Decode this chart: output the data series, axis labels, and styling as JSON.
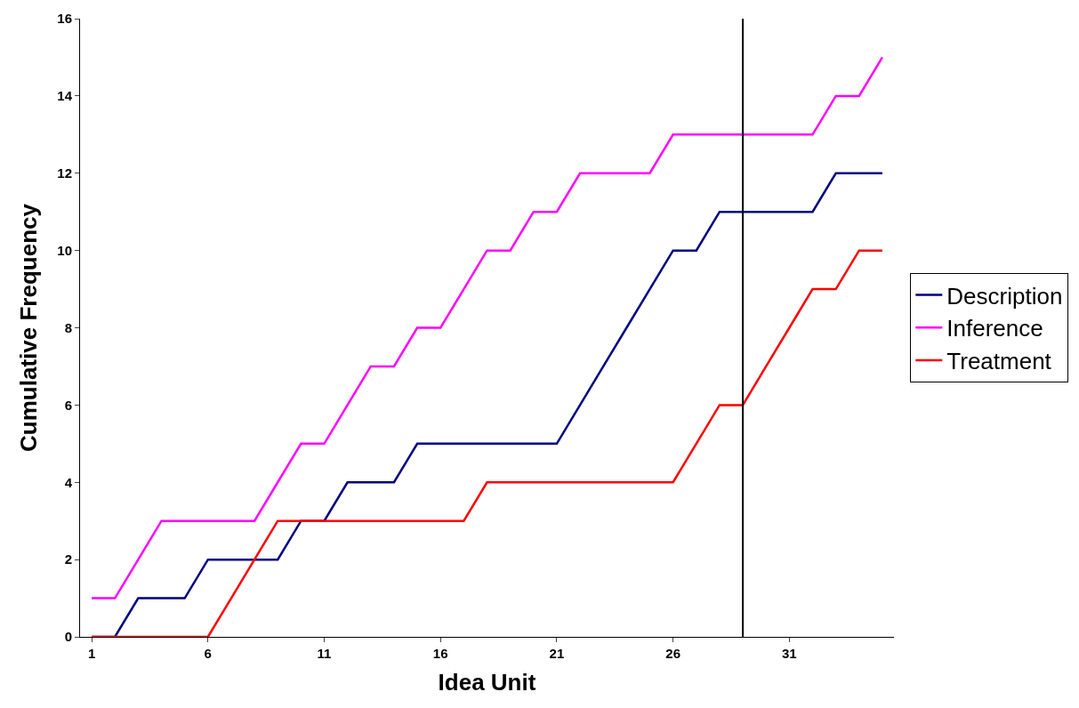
{
  "chart_data": {
    "type": "line",
    "xlabel": "Idea Unit",
    "ylabel": "Cumulative Frequency",
    "x": [
      1,
      2,
      3,
      4,
      5,
      6,
      7,
      8,
      9,
      10,
      11,
      12,
      13,
      14,
      15,
      16,
      17,
      18,
      19,
      20,
      21,
      22,
      23,
      24,
      25,
      26,
      27,
      28,
      29,
      30,
      31,
      32,
      33,
      34,
      35
    ],
    "series": [
      {
        "name": "Description",
        "color": "#000080",
        "values": [
          0,
          0,
          1,
          1,
          1,
          2,
          2,
          2,
          2,
          3,
          3,
          4,
          4,
          4,
          5,
          5,
          5,
          5,
          5,
          5,
          5,
          6,
          7,
          8,
          9,
          10,
          10,
          11,
          11,
          11,
          11,
          11,
          12,
          12,
          12
        ]
      },
      {
        "name": "Inference",
        "color": "#ff00ff",
        "values": [
          1,
          1,
          2,
          3,
          3,
          3,
          3,
          3,
          4,
          5,
          5,
          6,
          7,
          7,
          8,
          8,
          9,
          10,
          10,
          11,
          11,
          12,
          12,
          12,
          12,
          13,
          13,
          13,
          13,
          13,
          13,
          13,
          14,
          14,
          15
        ]
      },
      {
        "name": "Treatment",
        "color": "#ff0000",
        "values": [
          0,
          0,
          0,
          0,
          0,
          0,
          1,
          2,
          3,
          3,
          3,
          3,
          3,
          3,
          3,
          3,
          3,
          4,
          4,
          4,
          4,
          4,
          4,
          4,
          4,
          4,
          5,
          6,
          6,
          7,
          8,
          9,
          9,
          10,
          10
        ]
      }
    ],
    "xlim": [
      0.5,
      35.5
    ],
    "xticks": [
      1,
      6,
      11,
      16,
      21,
      26,
      31
    ],
    "ylim": [
      0,
      16
    ],
    "yticks": [
      0,
      2,
      4,
      6,
      8,
      10,
      12,
      14,
      16
    ],
    "ref_lines": [
      {
        "axis": "x",
        "value": 29,
        "color": "#000000"
      }
    ],
    "legend": "right",
    "marker": "none",
    "line_style": "solid"
  }
}
